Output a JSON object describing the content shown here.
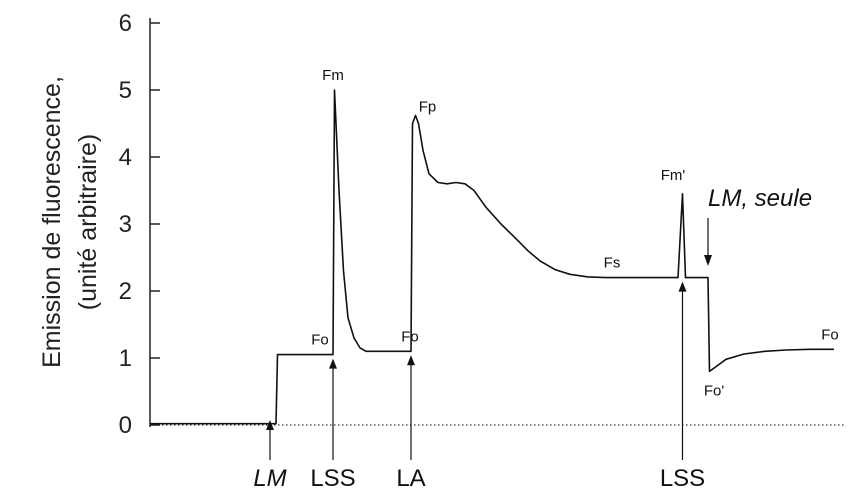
{
  "chart_data": {
    "type": "line",
    "title": "",
    "xlabel": "",
    "ylabel_lines": [
      "Emission de fluorescence,",
      "(unité arbitraire)"
    ],
    "ylim": [
      0,
      6
    ],
    "yticks": [
      "0",
      "1",
      "2",
      "3",
      "4",
      "5",
      "6"
    ],
    "grid": false,
    "baseline_zero": "dotted",
    "series": [
      {
        "x": [
          0,
          4.0,
          4.2,
          4.25,
          6.1,
          6.15,
          6.3,
          6.45,
          6.6,
          6.8,
          7.0,
          7.2,
          7.5,
          8.0,
          8.7,
          8.75,
          8.85,
          8.95,
          9.1,
          9.3,
          9.6,
          9.9,
          10.2,
          10.5,
          10.8,
          11.2,
          11.7,
          12.2,
          12.6,
          13.0,
          13.5,
          14.0,
          14.6,
          15.2,
          15.7,
          16.2,
          16.6,
          17.6,
          17.75,
          17.85,
          18.0,
          18.2,
          18.6,
          18.65,
          18.8,
          19.2,
          19.8,
          20.5,
          21.2,
          22.0,
          22.8
        ],
        "y": [
          0.02,
          0.02,
          0.02,
          1.05,
          1.05,
          5.0,
          3.5,
          2.3,
          1.6,
          1.3,
          1.15,
          1.1,
          1.1,
          1.1,
          1.1,
          4.5,
          4.62,
          4.5,
          4.1,
          3.75,
          3.62,
          3.6,
          3.62,
          3.6,
          3.5,
          3.25,
          3.0,
          2.78,
          2.6,
          2.45,
          2.32,
          2.25,
          2.21,
          2.2,
          2.2,
          2.2,
          2.2,
          2.2,
          3.45,
          2.2,
          2.2,
          2.2,
          2.2,
          0.8,
          0.85,
          0.98,
          1.06,
          1.1,
          1.12,
          1.13,
          1.13
        ]
      }
    ],
    "annotations": [
      {
        "text": "Fo",
        "x": 5.0,
        "y": 1.05
      },
      {
        "text": "Fm",
        "x": 6.1,
        "y": 5.0
      },
      {
        "text": "Fo",
        "x": 8.0,
        "y": 1.1
      },
      {
        "text": "Fp",
        "x": 8.85,
        "y": 4.62
      },
      {
        "text": "Fs",
        "x": 16.4,
        "y": 2.2
      },
      {
        "text": "Fm'",
        "x": 17.7,
        "y": 3.45
      },
      {
        "text": "Fo'",
        "x": 18.8,
        "y": 0.8
      },
      {
        "text": "Fo",
        "x": 22.0,
        "y": 1.13
      }
    ],
    "events": [
      {
        "label": "LM",
        "x": 4.0,
        "italic": true
      },
      {
        "label": "LSS",
        "x": 6.1,
        "italic": false
      },
      {
        "label": "LA",
        "x": 8.7,
        "italic": false
      },
      {
        "label": "LSS",
        "x": 17.75,
        "italic": false
      },
      {
        "label": "LM, seule",
        "x": 18.6,
        "italic": true
      }
    ]
  }
}
